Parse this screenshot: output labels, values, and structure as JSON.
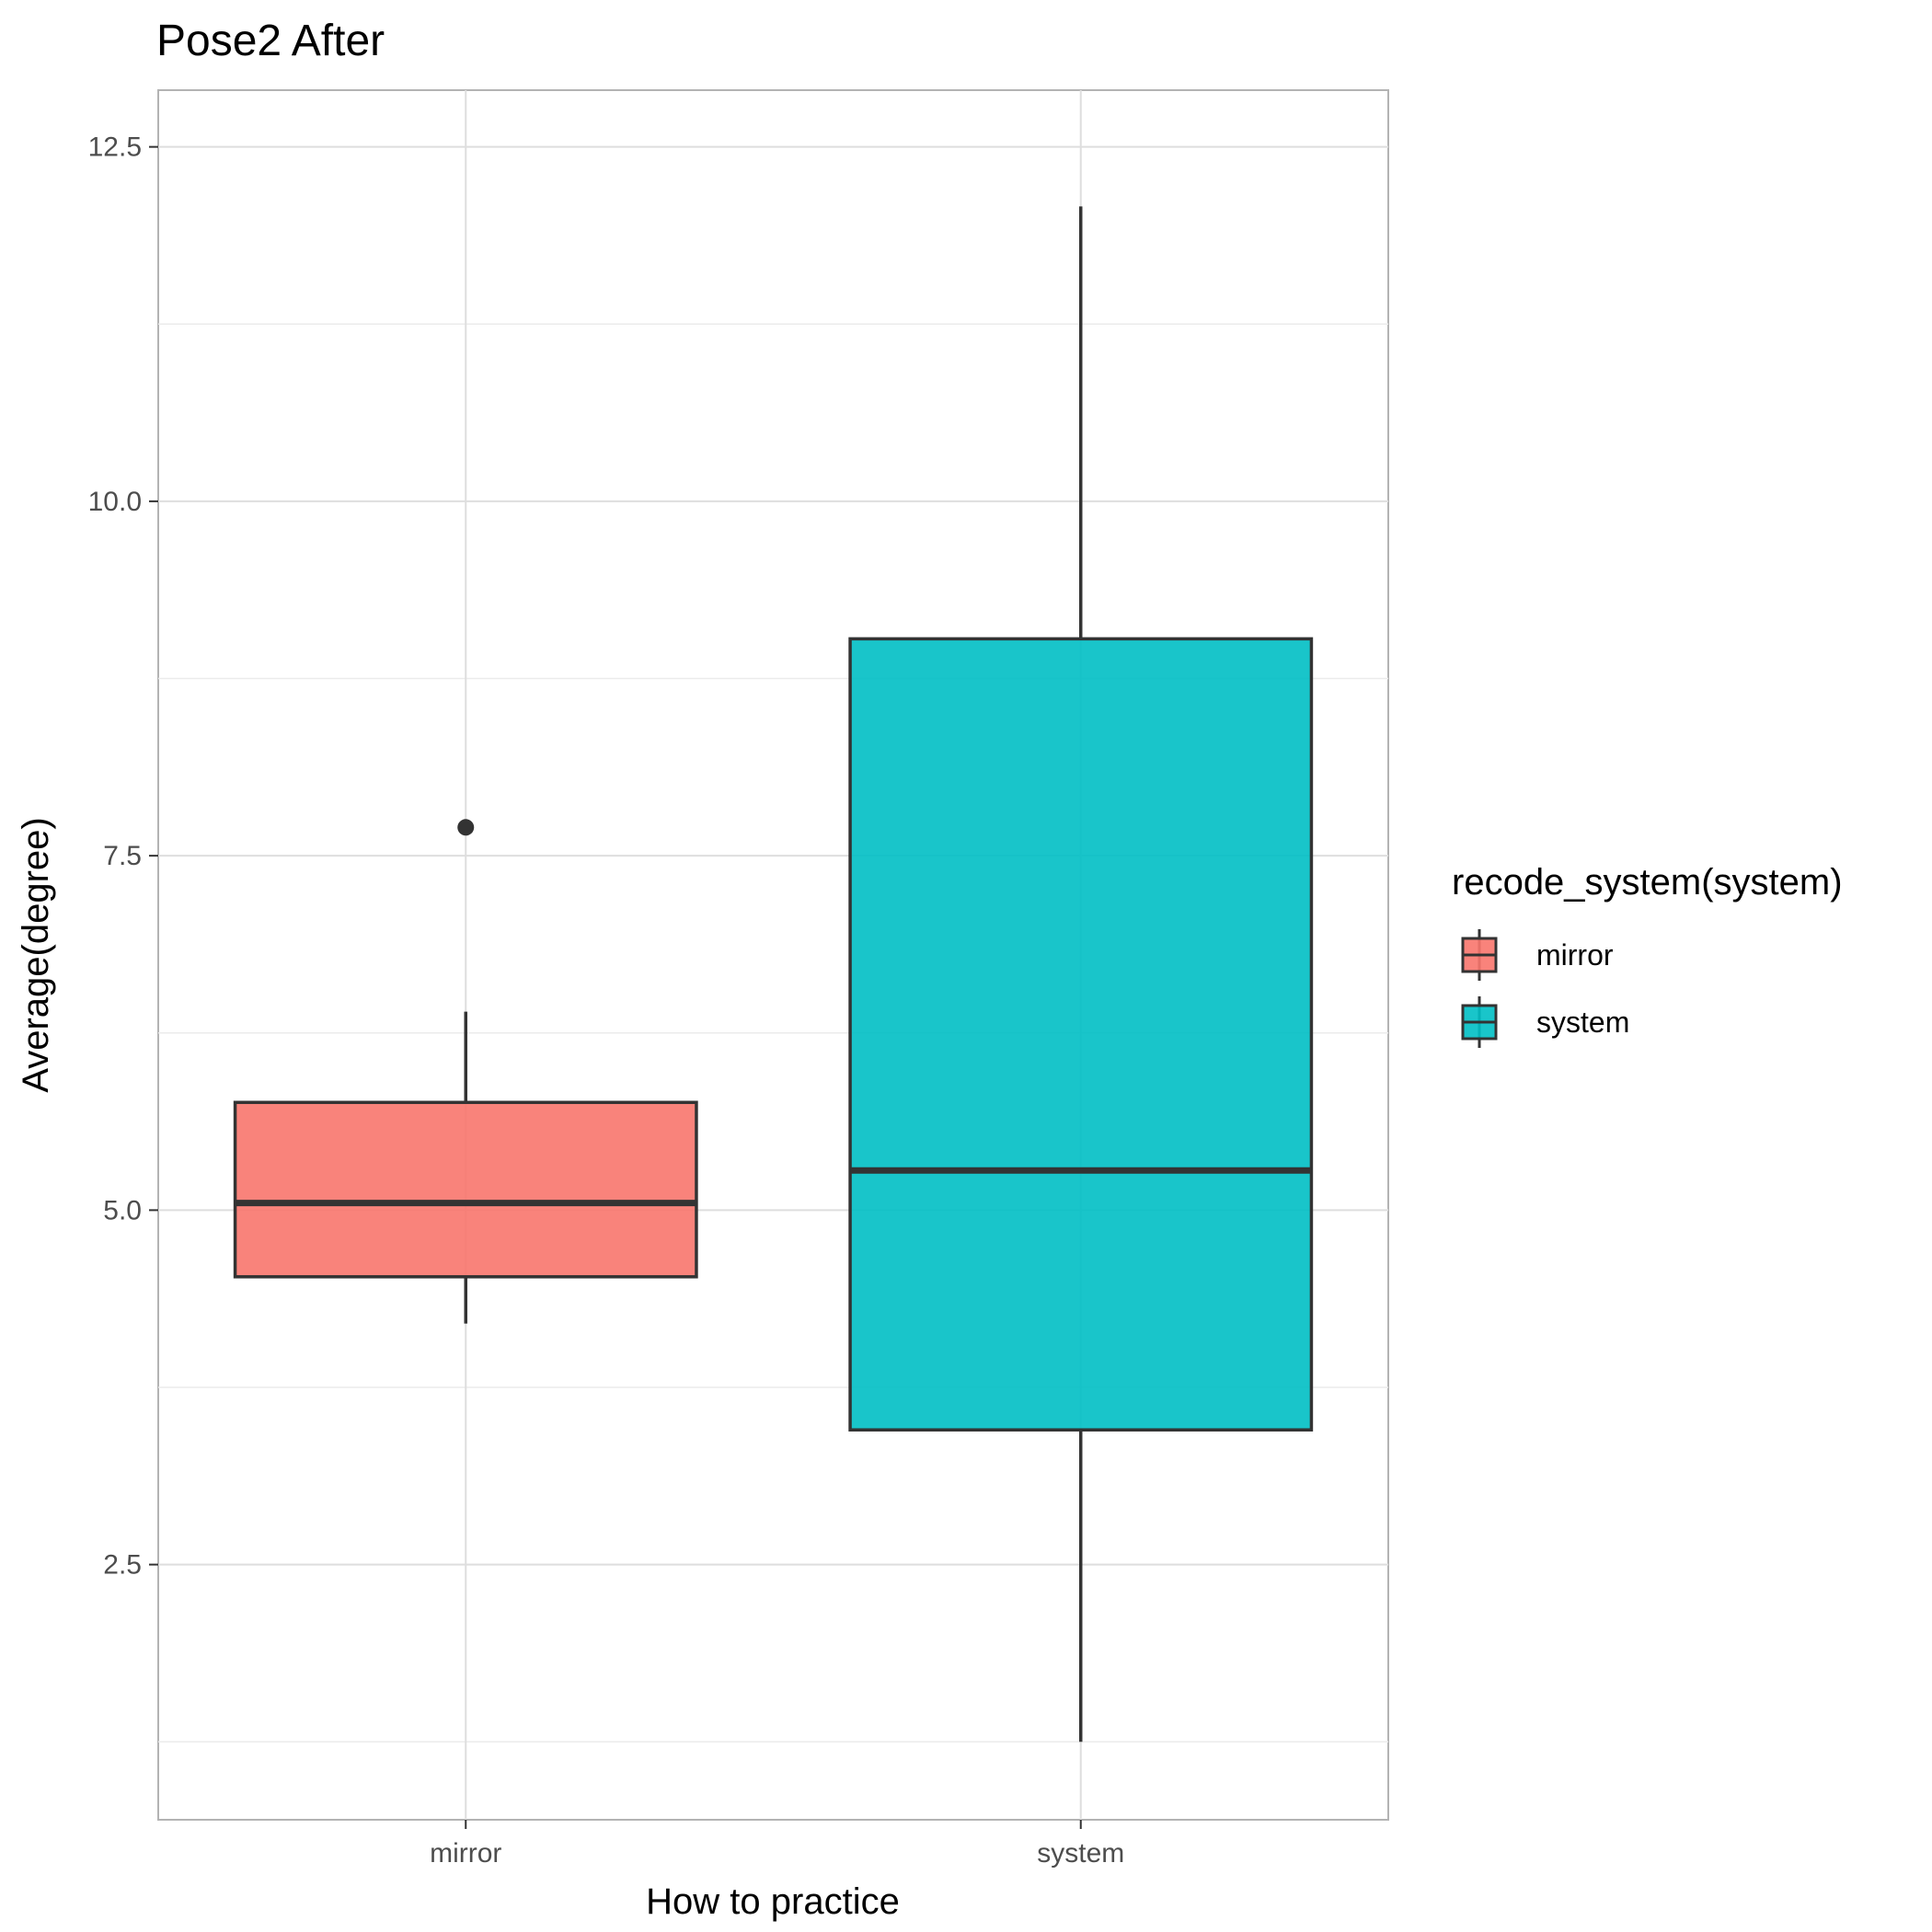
{
  "chart_data": {
    "type": "box",
    "title": "Pose2 After",
    "xlabel": "How to practice",
    "ylabel": "Average(degree)",
    "categories": [
      "mirror",
      "system"
    ],
    "ylim": [
      0.7,
      12.9
    ],
    "y_ticks": [
      2.5,
      5.0,
      7.5,
      10.0,
      12.5
    ],
    "y_tick_labels": [
      "2.5",
      "5.0",
      "7.5",
      "10.0",
      "12.5"
    ],
    "grid": true,
    "legend": {
      "title": "recode_system(system)",
      "placement": "right",
      "entries": [
        "mirror",
        "system"
      ]
    },
    "series": [
      {
        "name": "mirror",
        "category": "mirror",
        "color": "#F8766D",
        "whisker_low": 4.2,
        "q1": 4.53,
        "median": 5.05,
        "q3": 5.76,
        "whisker_high": 6.4,
        "outliers": [
          7.7
        ]
      },
      {
        "name": "system",
        "category": "system",
        "color": "#00BFC4",
        "whisker_low": 1.25,
        "q1": 3.45,
        "median": 5.28,
        "q3": 9.03,
        "whisker_high": 12.08,
        "outliers": []
      }
    ]
  }
}
